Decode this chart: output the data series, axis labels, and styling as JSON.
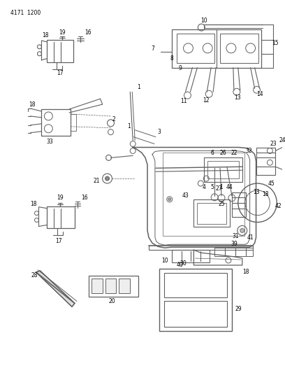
{
  "header_text": "4171 1200",
  "bg": "#ffffff",
  "lc": "#606060",
  "tc": "#000000",
  "figsize": [
    4.08,
    5.33
  ],
  "dpi": 100
}
